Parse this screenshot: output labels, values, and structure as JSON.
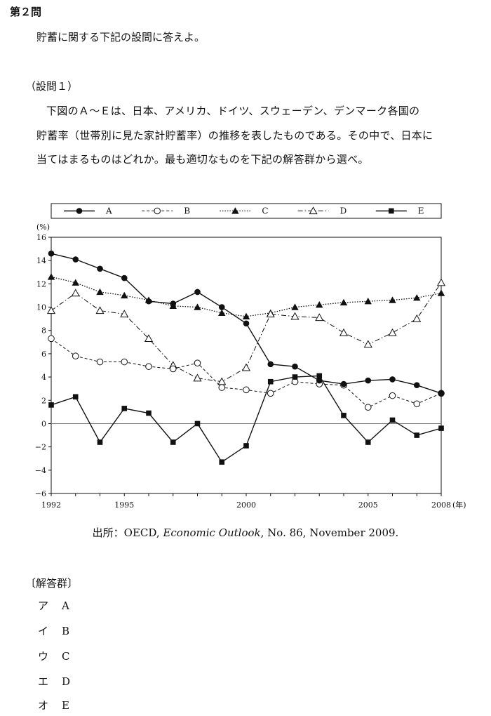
{
  "heading": "第２問",
  "intro": "貯蓄に関する下記の設問に答えよ。",
  "question_label": "（設問１）",
  "question_lines": [
    "下図のＡ～Ｅは、日本、アメリカ、ドイツ、スウェーデン、デンマーク各国の",
    "貯蓄率（世帯別に見た家計貯蓄率）の推移を表したものである。その中で、日本に",
    "当てはまるものはどれか。最も適切なものを下記の解答群から選べ。"
  ],
  "source": {
    "prefix": "出所：OECD, ",
    "title": "Economic Outlook",
    "suffix": ", No. 86, November 2009."
  },
  "answer_label": "〔解答群〕",
  "choices": [
    {
      "kana": "ア",
      "value": "A"
    },
    {
      "kana": "イ",
      "value": "B"
    },
    {
      "kana": "ウ",
      "value": "C"
    },
    {
      "kana": "エ",
      "value": "D"
    },
    {
      "kana": "オ",
      "value": "E"
    }
  ],
  "chart_data": {
    "type": "line",
    "ylabel": "(%)",
    "xlabel": "",
    "year_unit": "(年)",
    "ylim": [
      -6,
      16
    ],
    "xlim": [
      1992,
      2008
    ],
    "yticks": [
      16,
      14,
      12,
      10,
      8,
      6,
      4,
      2,
      0,
      -2,
      -4,
      -6
    ],
    "ytick_labels": [
      "16",
      "14",
      "12",
      "10",
      "8",
      "6",
      "4",
      "2",
      "0",
      "−2",
      "−4",
      "−6"
    ],
    "xticks": [
      1992,
      1995,
      2000,
      2005,
      2008
    ],
    "xtick_labels": [
      "1992",
      "1995",
      "2000",
      "2005",
      "2008"
    ],
    "zero_line": true,
    "grid": false,
    "legend_position": "top",
    "x": [
      1992,
      1993,
      1994,
      1995,
      1996,
      1997,
      1998,
      1999,
      2000,
      2001,
      2002,
      2003,
      2004,
      2005,
      2006,
      2007,
      2008
    ],
    "series": [
      {
        "name": "A",
        "marker": "filled-circle",
        "line": "solid",
        "values": [
          14.6,
          14.1,
          13.3,
          12.5,
          10.5,
          10.3,
          11.3,
          10.0,
          8.6,
          5.1,
          4.9,
          3.7,
          3.4,
          3.7,
          3.8,
          3.3,
          2.6
        ]
      },
      {
        "name": "B",
        "marker": "open-circle",
        "line": "dashed",
        "values": [
          7.3,
          5.8,
          5.3,
          5.3,
          4.9,
          4.7,
          5.2,
          3.1,
          2.9,
          2.6,
          3.6,
          3.4,
          3.3,
          1.4,
          2.4,
          1.7,
          2.6
        ]
      },
      {
        "name": "C",
        "marker": "filled-triangle",
        "line": "dotted",
        "values": [
          12.6,
          12.1,
          11.3,
          11.0,
          10.6,
          10.1,
          10.0,
          9.5,
          9.2,
          9.5,
          10.0,
          10.2,
          10.4,
          10.5,
          10.6,
          10.8,
          11.2
        ]
      },
      {
        "name": "D",
        "marker": "open-triangle",
        "line": "dash-dot",
        "values": [
          9.7,
          11.2,
          9.7,
          9.4,
          7.3,
          5.0,
          3.9,
          3.6,
          4.8,
          9.4,
          9.2,
          9.1,
          7.8,
          6.8,
          7.8,
          9.0,
          12.1
        ]
      },
      {
        "name": "E",
        "marker": "filled-square",
        "line": "solid",
        "values": [
          1.6,
          2.3,
          -1.6,
          1.3,
          0.9,
          -1.6,
          0.0,
          -3.3,
          -1.9,
          3.6,
          4.0,
          4.1,
          0.7,
          -1.6,
          0.3,
          -1.0,
          -0.4
        ]
      }
    ]
  }
}
